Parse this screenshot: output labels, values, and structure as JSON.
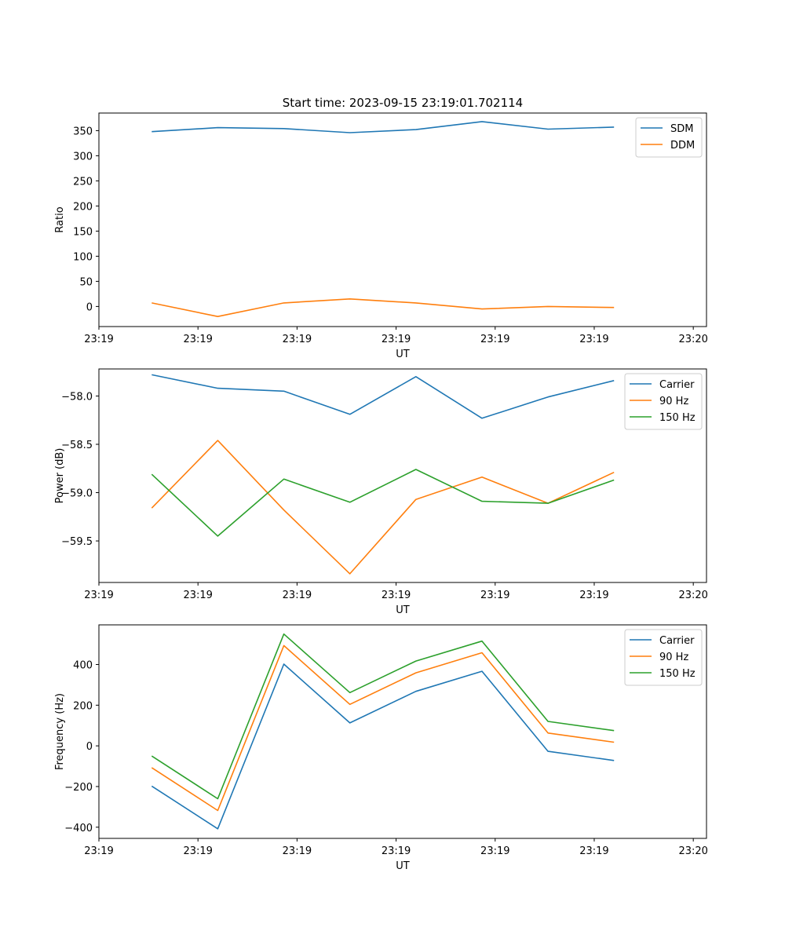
{
  "figure_title": "Start time: 2023-09-15 23:19:01.702114",
  "chart_data": [
    {
      "type": "line",
      "title": "Start time: 2023-09-15 23:19:01.702114",
      "xlabel": "UT",
      "ylabel": "Ratio",
      "grid": false,
      "legend_position": "top-right",
      "x": [
        1,
        2,
        3,
        4,
        5,
        6,
        7,
        8
      ],
      "xlim": [
        0.2,
        9.4
      ],
      "x_ticks": [
        0.2,
        1.7,
        3.2,
        4.7,
        6.2,
        7.7,
        9.2
      ],
      "x_tick_labels": [
        "23:19",
        "23:19",
        "23:19",
        "23:19",
        "23:19",
        "23:19",
        "23:20"
      ],
      "ylim": [
        -40,
        385
      ],
      "y_ticks": [
        0,
        50,
        100,
        150,
        200,
        250,
        300,
        350
      ],
      "y_tick_labels": [
        "0",
        "50",
        "100",
        "150",
        "200",
        "250",
        "300",
        "350"
      ],
      "series": [
        {
          "name": "SDM",
          "color": "#1f77b4",
          "values": [
            348,
            356,
            354,
            346,
            352,
            368,
            353,
            357
          ]
        },
        {
          "name": "DDM",
          "color": "#ff7f0e",
          "values": [
            7,
            -20,
            7,
            15,
            7,
            -5,
            0,
            -2
          ]
        }
      ]
    },
    {
      "type": "line",
      "title": "",
      "xlabel": "UT",
      "ylabel": "Power (dB)",
      "grid": false,
      "legend_position": "top-right",
      "x": [
        1,
        2,
        3,
        4,
        5,
        6,
        7,
        8
      ],
      "xlim": [
        0.2,
        9.4
      ],
      "x_ticks": [
        0.2,
        1.7,
        3.2,
        4.7,
        6.2,
        7.7,
        9.2
      ],
      "x_tick_labels": [
        "23:19",
        "23:19",
        "23:19",
        "23:19",
        "23:19",
        "23:19",
        "23:20"
      ],
      "ylim": [
        -59.93,
        -57.72
      ],
      "y_ticks": [
        -58.0,
        -58.5,
        -59.0,
        -59.5
      ],
      "y_tick_labels": [
        "−58.0",
        "−58.5",
        "−59.0",
        "−59.5"
      ],
      "series": [
        {
          "name": "Carrier",
          "color": "#1f77b4",
          "values": [
            -57.78,
            -57.92,
            -57.95,
            -58.19,
            -57.8,
            -58.23,
            -58.01,
            -57.84
          ]
        },
        {
          "name": "90 Hz",
          "color": "#ff7f0e",
          "values": [
            -59.16,
            -58.46,
            -59.18,
            -59.84,
            -59.07,
            -58.84,
            -59.11,
            -58.79
          ]
        },
        {
          "name": "150 Hz",
          "color": "#2ca02c",
          "values": [
            -58.81,
            -59.45,
            -58.86,
            -59.1,
            -58.76,
            -59.09,
            -59.11,
            -58.87
          ]
        }
      ]
    },
    {
      "type": "line",
      "title": "",
      "xlabel": "UT",
      "ylabel": "Frequency (Hz)",
      "grid": false,
      "legend_position": "top-right",
      "x": [
        1,
        2,
        3,
        4,
        5,
        6,
        7,
        8
      ],
      "xlim": [
        0.2,
        9.4
      ],
      "x_ticks": [
        0.2,
        1.7,
        3.2,
        4.7,
        6.2,
        7.7,
        9.2
      ],
      "x_tick_labels": [
        "23:19",
        "23:19",
        "23:19",
        "23:19",
        "23:19",
        "23:19",
        "23:20"
      ],
      "ylim": [
        -455,
        595
      ],
      "y_ticks": [
        -400,
        -200,
        0,
        200,
        400
      ],
      "y_tick_labels": [
        "−400",
        "−200",
        "0",
        "200",
        "400"
      ],
      "series": [
        {
          "name": "Carrier",
          "color": "#1f77b4",
          "values": [
            -198,
            -408,
            402,
            113,
            268,
            367,
            -27,
            -72
          ]
        },
        {
          "name": "90 Hz",
          "color": "#ff7f0e",
          "values": [
            -107,
            -318,
            493,
            204,
            359,
            458,
            63,
            18
          ]
        },
        {
          "name": "150 Hz",
          "color": "#2ca02c",
          "values": [
            -50,
            -260,
            550,
            262,
            417,
            515,
            120,
            75
          ]
        }
      ]
    }
  ]
}
